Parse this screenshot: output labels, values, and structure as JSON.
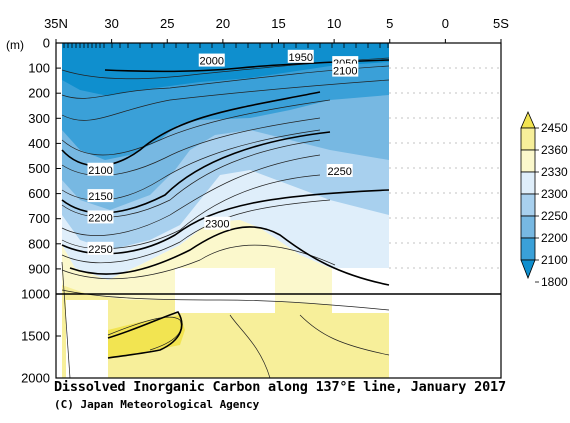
{
  "caption": "Dissolved Inorganic Carbon along 137°E line, January 2017",
  "credit": "(C) Japan Meteorological Agency",
  "chart_data": {
    "type": "contour-section",
    "title": "Dissolved Inorganic Carbon along 137°E line, January 2017",
    "x_axis": {
      "tick_labels": [
        "35N",
        "30",
        "25",
        "20",
        "15",
        "10",
        "5",
        "0",
        "5S"
      ],
      "tick_values": [
        35,
        30,
        25,
        20,
        15,
        10,
        5,
        0,
        -5
      ]
    },
    "y_axis": {
      "unit_label": "(m)",
      "upper_tick_labels": [
        "0",
        "100",
        "200",
        "300",
        "400",
        "500",
        "600",
        "700",
        "800",
        "900",
        "1000"
      ],
      "upper_tick_values": [
        0,
        100,
        200,
        300,
        400,
        500,
        600,
        700,
        800,
        900,
        1000
      ],
      "lower_tick_labels": [
        "1500",
        "2000"
      ],
      "lower_tick_values": [
        1500,
        2000
      ]
    },
    "colorbar": {
      "levels": [
        "2450",
        "2360",
        "2330",
        "2300",
        "2250",
        "2200",
        "2100",
        "1800"
      ],
      "colors": [
        "#f2e451",
        "#f7ef9a",
        "#fbf8cc",
        "#dfeefa",
        "#a8d0ee",
        "#77b8e2",
        "#3aa0d8",
        "#0f8fce"
      ]
    },
    "contour_labels": [
      {
        "text": "1950",
        "lat": 13.0,
        "depth": 55
      },
      {
        "text": "2000",
        "lat": 21.0,
        "depth": 70
      },
      {
        "text": "2050",
        "lat": 9.0,
        "depth": 80
      },
      {
        "text": "2100",
        "lat": 9.0,
        "depth": 110
      },
      {
        "text": "2100",
        "lat": 31.0,
        "depth": 505
      },
      {
        "text": "2150",
        "lat": 31.0,
        "depth": 610
      },
      {
        "text": "2200",
        "lat": 31.0,
        "depth": 695
      },
      {
        "text": "2250",
        "lat": 9.5,
        "depth": 510
      },
      {
        "text": "2250",
        "lat": 31.0,
        "depth": 820
      },
      {
        "text": "2300",
        "lat": 20.5,
        "depth": 720
      }
    ]
  }
}
